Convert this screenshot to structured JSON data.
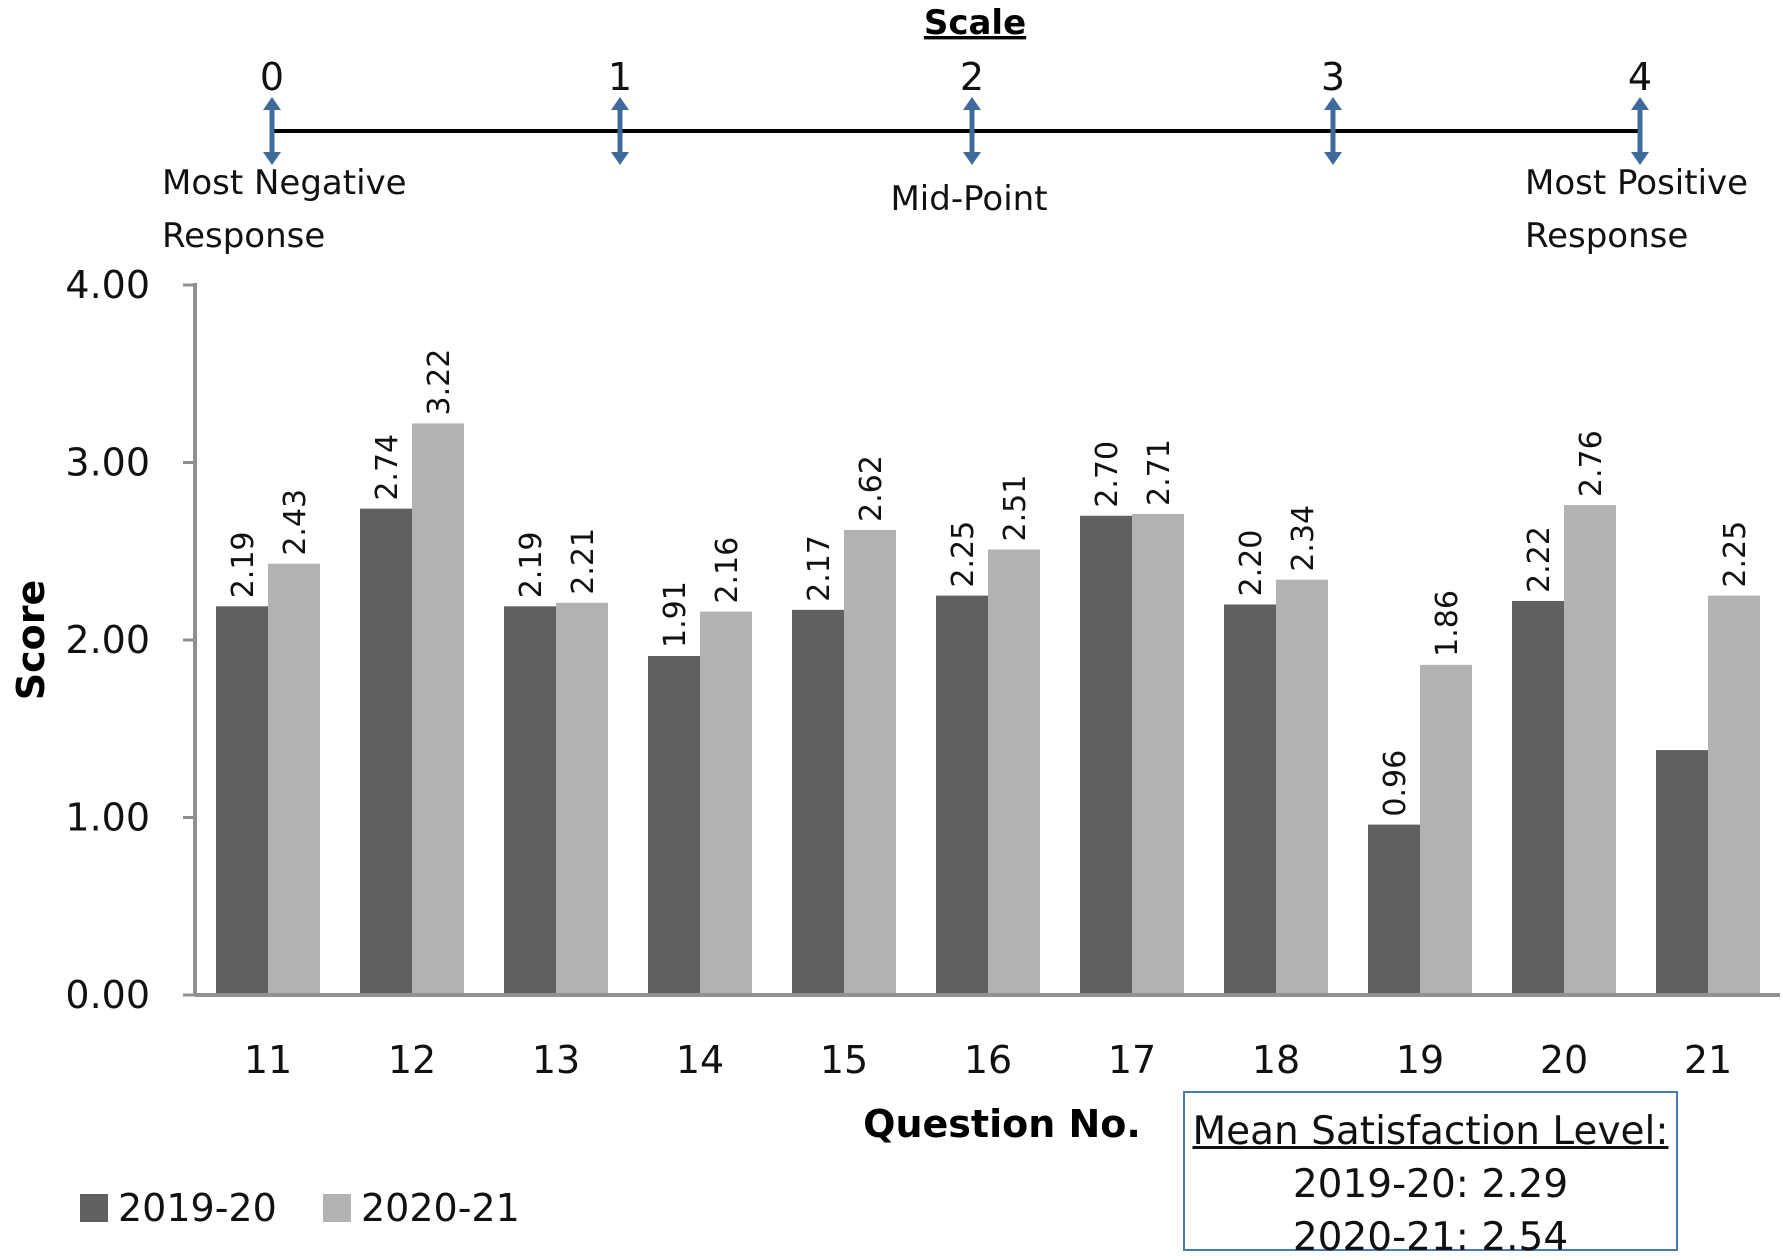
{
  "scale": {
    "title": "Scale",
    "ticks": [
      "0",
      "1",
      "2",
      "3",
      "4"
    ],
    "label_left": [
      "Most Negative",
      "Response"
    ],
    "label_mid": "Mid-Point",
    "label_right": [
      "Most Positive",
      "Response"
    ],
    "arrow_color": "#3f6a9c"
  },
  "mean": {
    "title": "Mean Satisfaction Level:",
    "line1": "2019-20: 2.29",
    "line2": "2020-21: 2.54"
  },
  "chart_data": {
    "type": "bar",
    "xlabel": "Question No.",
    "ylabel": "Score",
    "ylim": [
      0,
      4
    ],
    "yticks": [
      "0.00",
      "1.00",
      "2.00",
      "3.00",
      "4.00"
    ],
    "categories": [
      "11",
      "12",
      "13",
      "14",
      "15",
      "16",
      "17",
      "18",
      "19",
      "20",
      "21"
    ],
    "series": [
      {
        "name": "2019-20",
        "color": "#606060",
        "values": [
          2.19,
          2.74,
          2.19,
          1.91,
          2.17,
          2.25,
          2.7,
          2.2,
          0.96,
          2.22,
          1.38
        ],
        "labels": [
          "2.19",
          "2.74",
          "2.19",
          "1.91",
          "2.17",
          "2.25",
          "2.70",
          "2.20",
          "0.96",
          "2.22",
          ""
        ]
      },
      {
        "name": "2020-21",
        "color": "#b2b2b2",
        "values": [
          2.43,
          3.22,
          2.21,
          2.16,
          2.62,
          2.51,
          2.71,
          2.34,
          1.86,
          2.76,
          2.25
        ],
        "labels": [
          "2.43",
          "3.22",
          "2.21",
          "2.16",
          "2.62",
          "2.51",
          "2.71",
          "2.34",
          "1.86",
          "2.76",
          "2.25"
        ]
      }
    ],
    "legend_position": "bottom-left",
    "grid": false
  }
}
